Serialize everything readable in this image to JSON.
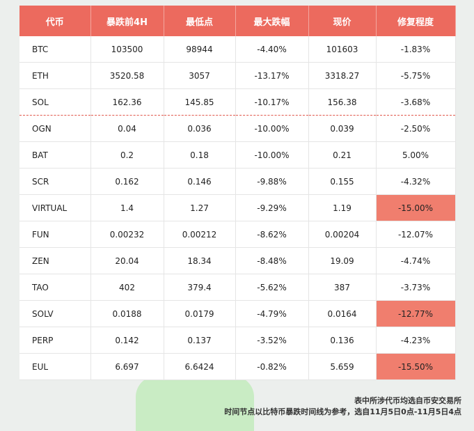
{
  "table": {
    "header": [
      "代币",
      "暴跌前4H",
      "最低点",
      "最大跌幅",
      "现价",
      "修复程度"
    ],
    "rows": [
      [
        "BTC",
        "103500",
        "98944",
        "-4.40%",
        "101603",
        "-1.83%"
      ],
      [
        "ETH",
        "3520.58",
        "3057",
        "-13.17%",
        "3318.27",
        "-5.75%"
      ],
      [
        "SOL",
        "162.36",
        "145.85",
        "-10.17%",
        "156.38",
        "-3.68%"
      ],
      [
        "OGN",
        "0.04",
        "0.036",
        "-10.00%",
        "0.039",
        "-2.50%"
      ],
      [
        "BAT",
        "0.2",
        "0.18",
        "-10.00%",
        "0.21",
        "5.00%"
      ],
      [
        "SCR",
        "0.162",
        "0.146",
        "-9.88%",
        "0.155",
        "-4.32%"
      ],
      [
        "VIRTUAL",
        "1.4",
        "1.27",
        "-9.29%",
        "1.19",
        "-15.00%"
      ],
      [
        "FUN",
        "0.00232",
        "0.00212",
        "-8.62%",
        "0.00204",
        "-12.07%"
      ],
      [
        "ZEN",
        "20.04",
        "18.34",
        "-8.48%",
        "19.09",
        "-4.74%"
      ],
      [
        "TAO",
        "402",
        "379.4",
        "-5.62%",
        "387",
        "-3.73%"
      ],
      [
        "SOLV",
        "0.0188",
        "0.0179",
        "-4.79%",
        "0.0164",
        "-12.77%"
      ],
      [
        "PERP",
        "0.142",
        "0.137",
        "-3.52%",
        "0.136",
        "-4.23%"
      ],
      [
        "EUL",
        "6.697",
        "6.6424",
        "-0.82%",
        "5.659",
        "-15.50%"
      ]
    ],
    "highlight_rows": [
      6,
      10,
      12
    ],
    "highlight_column": 5,
    "highlight_color": "#f07e6e",
    "header_color": "#ec6a5e",
    "divider_after_row": 2
  },
  "footer": {
    "lines": [
      "表中所涉代币均选自币安交易所",
      "时间节点以比特币暴跌时间线为参考，选自11月5日0点-11月5日4点"
    ]
  }
}
